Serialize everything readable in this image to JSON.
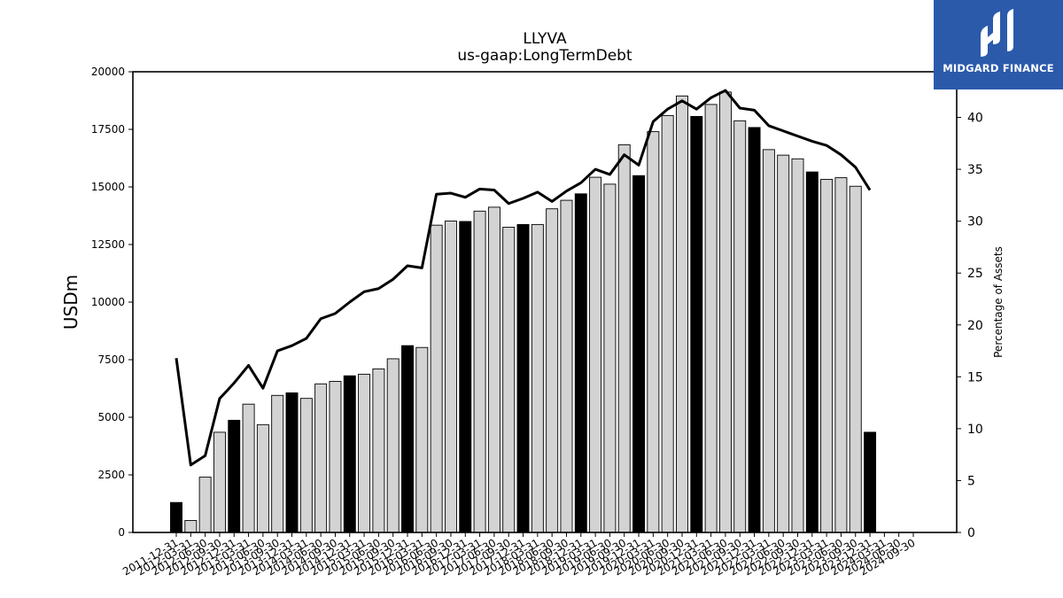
{
  "brand": {
    "name": "MIDGARD FINANCE",
    "logo_color": "#2b5aab"
  },
  "chart_data": {
    "type": "bar",
    "title": "LLYVA",
    "subtitle": "us-gaap:LongTermDebt",
    "ylabel": "USDm",
    "y2label": "Percentage of Assets",
    "ylim": [
      0,
      20000
    ],
    "y2lim": [
      0,
      44.4
    ],
    "yticks": [
      0,
      2500,
      5000,
      7500,
      10000,
      12500,
      15000,
      17500,
      20000
    ],
    "y2ticks": [
      0,
      5,
      10,
      15,
      20,
      25,
      30,
      35,
      40
    ],
    "grid": false,
    "bar_colors": {
      "year_end": "#000000",
      "quarter": "#d3d3d3"
    },
    "line_color": "#000000",
    "categories": [
      "2011-12-31",
      "2012-03-31",
      "2012-06-30",
      "2012-09-30",
      "2012-12-31",
      "2013-03-31",
      "2013-06-30",
      "2013-09-30",
      "2013-12-31",
      "2014-03-31",
      "2014-06-30",
      "2014-09-30",
      "2014-12-31",
      "2015-03-31",
      "2015-06-30",
      "2015-09-30",
      "2015-12-31",
      "2016-03-31",
      "2016-06-30",
      "2016-09-30",
      "2016-12-31",
      "2017-03-31",
      "2017-06-30",
      "2017-09-30",
      "2017-12-31",
      "2018-03-31",
      "2018-06-30",
      "2018-09-30",
      "2018-12-31",
      "2019-03-31",
      "2019-06-30",
      "2019-09-30",
      "2019-12-31",
      "2020-03-31",
      "2020-06-30",
      "2020-09-30",
      "2020-12-31",
      "2021-03-31",
      "2021-06-30",
      "2021-09-30",
      "2021-12-31",
      "2022-03-31",
      "2022-06-30",
      "2022-09-30",
      "2022-12-31",
      "2023-03-31",
      "2023-06-30",
      "2023-09-30",
      "2023-12-31",
      "2024-03-31",
      "2024-06-30",
      "2024-09-30"
    ],
    "xtick_labels": [
      "2011-12-31",
      "2012-03-31",
      "2012-06-30",
      "2012-09-30",
      "2012-12-31",
      "2013-03-31",
      "2013-06-30",
      "2013-09-30",
      "2013-12-31",
      "2014-03-31",
      "2014-06-30",
      "2014-09-30",
      "2014-12-31",
      "2015-03-31",
      "2015-06-30",
      "2015-09-30",
      "2015-12-31",
      "2016-03-31",
      "2016-06-30",
      "2016-09-30",
      "2016-12-31",
      "2017-03-31",
      "2017-06-30",
      "2017-09-30",
      "2017-12-31",
      "2018-03-31",
      "2018-06-30",
      "2018-09-30",
      "2018-12-31",
      "2019-03-31",
      "2019-06-30",
      "2019-09-30",
      "2019-12-31",
      "2020-03-31",
      "2020-06-30",
      "2020-09-30",
      "2020-12-31",
      "2021-03-31",
      "2021-06-30",
      "2021-09-30",
      "2021-12-31",
      "2022-03-31",
      "2022-06-30",
      "2022-09-30",
      "2022-12-31",
      "2023-03-31",
      "2023-06-30",
      "2023-09-30",
      "2023-12-31",
      "2024-03-31",
      "2024-06-30",
      "2024-09-30"
    ],
    "bar_values": [
      1300,
      520,
      2400,
      4350,
      4870,
      5570,
      4680,
      5950,
      6060,
      5820,
      6450,
      6560,
      6800,
      6870,
      7100,
      7540,
      8110,
      8030,
      13340,
      13520,
      13500,
      13950,
      14120,
      13250,
      13370,
      13370,
      14050,
      14420,
      14700,
      15420,
      15120,
      16830,
      15490,
      17400,
      18100,
      18950,
      18060,
      18580,
      19120,
      17870,
      17580,
      16620,
      16380,
      16220,
      15650,
      15330,
      15400,
      15030,
      4350
    ],
    "bar_categories_start": 0,
    "line_values": [
      16.8,
      6.5,
      7.4,
      12.9,
      14.4,
      16.1,
      13.9,
      17.5,
      18.0,
      18.7,
      20.6,
      21.1,
      22.2,
      23.2,
      23.5,
      24.4,
      25.7,
      25.5,
      32.6,
      32.7,
      32.3,
      33.1,
      33.0,
      31.7,
      32.2,
      32.8,
      31.9,
      32.9,
      33.7,
      35.0,
      34.5,
      36.4,
      35.4,
      39.6,
      40.8,
      41.6,
      40.8,
      41.9,
      42.6,
      40.9,
      40.7,
      39.2,
      38.7,
      38.2,
      37.7,
      37.3,
      36.4,
      35.2,
      33.0
    ],
    "line_categories_start": 0
  }
}
